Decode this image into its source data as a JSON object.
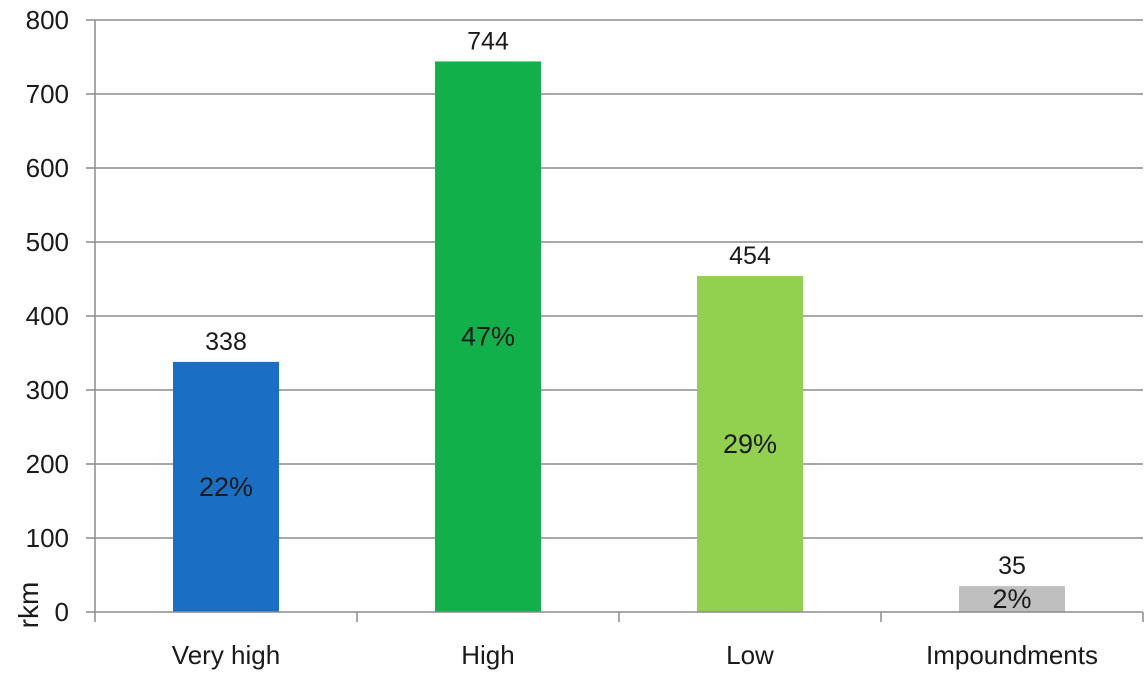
{
  "chart_data": {
    "type": "bar",
    "title": "",
    "xlabel": "",
    "ylabel": "rkm",
    "ylim": [
      0,
      800
    ],
    "yticks": [
      0,
      100,
      200,
      300,
      400,
      500,
      600,
      700,
      800
    ],
    "grid": true,
    "legend": "none",
    "categories": [
      "Very high",
      "High",
      "Low",
      "Impoundments"
    ],
    "values": [
      338,
      744,
      454,
      35
    ],
    "value_labels": [
      "338",
      "744",
      "454",
      "35"
    ],
    "percent_labels": [
      "22%",
      "47%",
      "29%",
      "2%"
    ],
    "colors": [
      "#1a6fc4",
      "#11b04b",
      "#92d050",
      "#bfbfbf"
    ]
  }
}
